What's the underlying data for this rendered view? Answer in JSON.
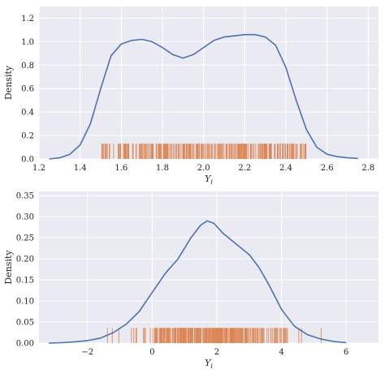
{
  "chart_data": [
    {
      "type": "area",
      "kind": "kde_with_rug",
      "xlabel": "Y",
      "xlabel_subscript": "i",
      "ylabel": "Density",
      "xlim": [
        1.2,
        2.85
      ],
      "ylim": [
        0,
        1.3
      ],
      "xticks": [
        "1.2",
        "1.4",
        "1.6",
        "1.8",
        "2.0",
        "2.2",
        "2.4",
        "2.6",
        "2.8"
      ],
      "yticks": [
        "0.0",
        "0.2",
        "0.4",
        "0.6",
        "0.8",
        "1.0",
        "1.2"
      ],
      "grid": true,
      "background": "#eaeaf2",
      "line_color": "#4c72b0",
      "rug_color": "#dd8452",
      "kde_x": [
        1.25,
        1.3,
        1.35,
        1.4,
        1.45,
        1.5,
        1.55,
        1.6,
        1.65,
        1.7,
        1.75,
        1.8,
        1.85,
        1.9,
        1.95,
        2.0,
        2.05,
        2.1,
        2.15,
        2.2,
        2.25,
        2.3,
        2.35,
        2.4,
        2.45,
        2.5,
        2.55,
        2.6,
        2.65,
        2.7,
        2.75
      ],
      "kde_y": [
        0.0,
        0.01,
        0.04,
        0.12,
        0.3,
        0.6,
        0.88,
        0.98,
        1.01,
        1.02,
        1.0,
        0.95,
        0.89,
        0.86,
        0.89,
        0.95,
        1.01,
        1.04,
        1.05,
        1.06,
        1.06,
        1.04,
        0.97,
        0.78,
        0.5,
        0.25,
        0.1,
        0.04,
        0.02,
        0.01,
        0.005
      ],
      "rug_range": [
        1.5,
        2.5
      ],
      "rug_height": 0.13,
      "rug_count": 300
    },
    {
      "type": "area",
      "kind": "kde_with_rug",
      "xlabel": "Y",
      "xlabel_subscript": "i",
      "ylabel": "Density",
      "xlim": [
        -3.5,
        7.0
      ],
      "ylim": [
        0,
        0.36
      ],
      "xticks": [
        "-2",
        "0",
        "2",
        "4",
        "6"
      ],
      "yticks": [
        "0.00",
        "0.05",
        "0.10",
        "0.15",
        "0.20",
        "0.25",
        "0.30",
        "0.35"
      ],
      "grid": true,
      "background": "#eaeaf2",
      "line_color": "#4c72b0",
      "rug_color": "#dd8452",
      "kde_x": [
        -3.2,
        -2.8,
        -2.4,
        -2.0,
        -1.6,
        -1.2,
        -0.8,
        -0.4,
        0.0,
        0.4,
        0.8,
        1.2,
        1.5,
        1.7,
        1.9,
        2.2,
        2.6,
        3.0,
        3.3,
        3.6,
        4.0,
        4.4,
        4.8,
        5.2,
        5.6,
        6.0
      ],
      "kde_y": [
        0.0,
        0.001,
        0.003,
        0.006,
        0.012,
        0.025,
        0.045,
        0.075,
        0.12,
        0.165,
        0.2,
        0.25,
        0.28,
        0.29,
        0.285,
        0.26,
        0.235,
        0.21,
        0.18,
        0.14,
        0.08,
        0.04,
        0.02,
        0.01,
        0.004,
        0.001
      ],
      "rug_range": [
        -2.1,
        5.7
      ],
      "rug_height": 0.036,
      "rug_count": 300
    }
  ]
}
